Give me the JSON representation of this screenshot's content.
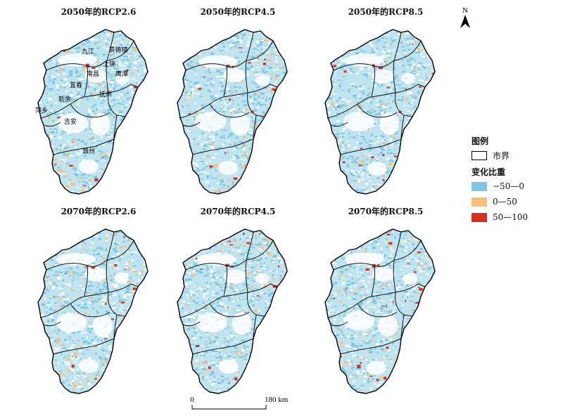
{
  "panels": [
    {
      "title": "2050年的RCP2.6",
      "variant": 0,
      "labels": true
    },
    {
      "title": "2050年的RCP4.5",
      "variant": 1,
      "labels": false
    },
    {
      "title": "2050年的RCP8.5",
      "variant": 2,
      "labels": false
    },
    {
      "title": "2070年的RCP2.6",
      "variant": 3,
      "labels": false
    },
    {
      "title": "2070年的RCP4.5",
      "variant": 4,
      "labels": false
    },
    {
      "title": "2070年的RCP8.5",
      "variant": 5,
      "labels": false
    }
  ],
  "city_labels": [
    "九江",
    "景德镇",
    "上饶",
    "南昌",
    "鹰潭",
    "宜春",
    "新余",
    "抚州",
    "萍乡",
    "吉安",
    "赣州"
  ],
  "legend": {
    "title": "图例",
    "boundary_label": "市界",
    "change_title": "变化比重",
    "classes": [
      {
        "label": "−50—0",
        "color": "#7ec8e3"
      },
      {
        "label": "0—50",
        "color": "#f7c07a"
      },
      {
        "label": "50—100",
        "color": "#d7301f"
      }
    ]
  },
  "north_label": "N",
  "scale": {
    "start": "0",
    "end": "180 km"
  }
}
